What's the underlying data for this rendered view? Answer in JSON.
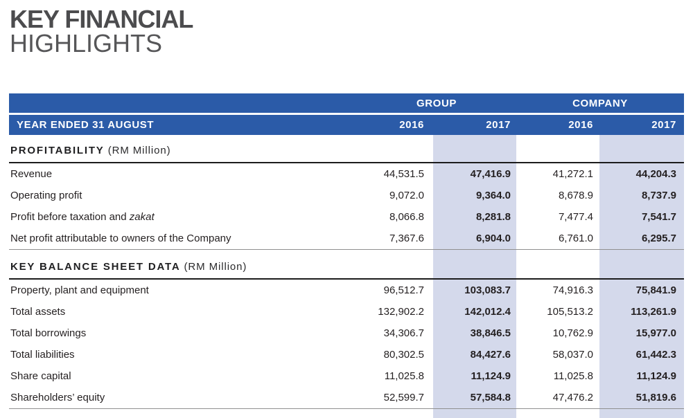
{
  "page_title": {
    "line1": "KEY FINANCIAL",
    "line2": "HIGHLIGHTS"
  },
  "table": {
    "header": {
      "group_label": "GROUP",
      "company_label": "COMPANY",
      "row_label": "YEAR ENDED 31 AUGUST",
      "year_columns": [
        "2016",
        "2017",
        "2016",
        "2017"
      ]
    },
    "sections": [
      {
        "title": "PROFITABILITY",
        "unit": "(RM Million)",
        "rows": [
          {
            "label": "Revenue",
            "values": [
              "44,531.5",
              "47,416.9",
              "41,272.1",
              "44,204.3"
            ]
          },
          {
            "label": "Operating profit",
            "values": [
              "9,072.0",
              "9,364.0",
              "8,678.9",
              "8,737.9"
            ]
          },
          {
            "label": "Profit before taxation and ",
            "label_italic": "zakat",
            "values": [
              "8,066.8",
              "8,281.8",
              "7,477.4",
              "7,541.7"
            ]
          },
          {
            "label": "Net profit attributable to owners of the Company",
            "values": [
              "7,367.6",
              "6,904.0",
              "6,761.0",
              "6,295.7"
            ]
          }
        ]
      },
      {
        "title": "KEY BALANCE SHEET DATA",
        "unit": "(RM Million)",
        "rows": [
          {
            "label": "Property, plant and equipment",
            "values": [
              "96,512.7",
              "103,083.7",
              "74,916.3",
              "75,841.9"
            ]
          },
          {
            "label": "Total assets",
            "values": [
              "132,902.2",
              "142,012.4",
              "105,513.2",
              "113,261.9"
            ]
          },
          {
            "label": "Total borrowings",
            "values": [
              "34,306.7",
              "38,846.5",
              "10,762.9",
              "15,977.0"
            ]
          },
          {
            "label": "Total liabilities",
            "values": [
              "80,302.5",
              "84,427.6",
              "58,037.0",
              "61,442.3"
            ]
          },
          {
            "label": "Share capital",
            "values": [
              "11,025.8",
              "11,124.9",
              "11,025.8",
              "11,124.9"
            ]
          },
          {
            "label": "Shareholders’ equity",
            "values": [
              "52,599.7",
              "57,584.8",
              "47,476.2",
              "51,819.6"
            ]
          }
        ]
      }
    ]
  },
  "colors": {
    "header_blue": "#2b5ba8",
    "highlight_band": "#d4d9eb",
    "title_gray": "#4c4c4e",
    "text_dark": "#231f20"
  }
}
